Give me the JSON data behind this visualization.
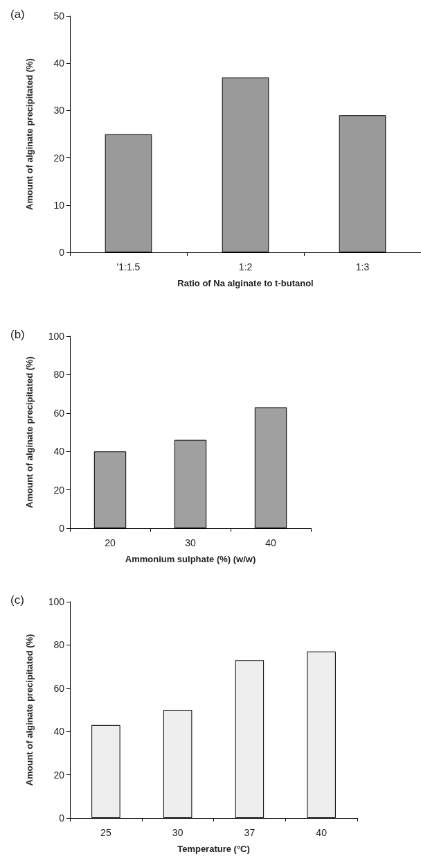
{
  "chart_data": [
    {
      "type": "bar",
      "title": "(a)",
      "xlabel": "Ratio of Na alginate to t-butanol",
      "ylabel": "Amount of alginate precipitated (%)",
      "categories": [
        "'1:1.5",
        "1:2",
        "1:3"
      ],
      "values": [
        25,
        37,
        29
      ],
      "color": "#9a9a9a",
      "ylim": [
        0,
        50
      ],
      "yticks": [
        0,
        10,
        20,
        30,
        40,
        50
      ]
    },
    {
      "type": "bar",
      "title": "(b)",
      "xlabel": "Ammonium sulphate (%) (w/w)",
      "ylabel": "Amount of alginate precipitated (%)",
      "categories": [
        "20",
        "30",
        "40"
      ],
      "values": [
        40,
        46,
        63
      ],
      "color": "#a0a0a0",
      "ylim": [
        0,
        100
      ],
      "yticks": [
        0,
        20,
        40,
        60,
        80,
        100
      ]
    },
    {
      "type": "bar",
      "title": "(c)",
      "xlabel": "Temperature (°C)",
      "ylabel": "Amount of alginate precipitated (%)",
      "categories": [
        "25",
        "30",
        "37",
        "40"
      ],
      "values": [
        43,
        50,
        73,
        77
      ],
      "color": "#eeeeee",
      "ylim": [
        0,
        100
      ],
      "yticks": [
        0,
        20,
        40,
        60,
        80,
        100
      ]
    }
  ]
}
